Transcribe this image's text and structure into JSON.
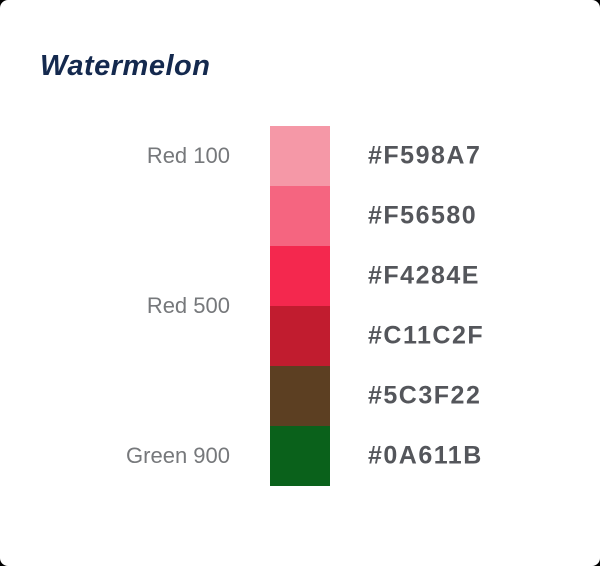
{
  "title": "Watermelon",
  "colors": {
    "title_text": "#14294E",
    "label_text": "#76787B",
    "hex_text": "#54565B",
    "card_background": "#FFFFFF"
  },
  "palette": {
    "rows": [
      {
        "hex": "#F598A7",
        "label": "Red 100",
        "label_align": "center"
      },
      {
        "hex": "#F56580",
        "label": "",
        "label_align": ""
      },
      {
        "hex": "#F4284E",
        "label": "",
        "label_align": ""
      },
      {
        "hex": "#C11C2F",
        "label": "Red 500",
        "label_align": "top"
      },
      {
        "hex": "#5C3F22",
        "label": "",
        "label_align": ""
      },
      {
        "hex": "#0A611B",
        "label": "Green 900",
        "label_align": "center"
      }
    ]
  }
}
